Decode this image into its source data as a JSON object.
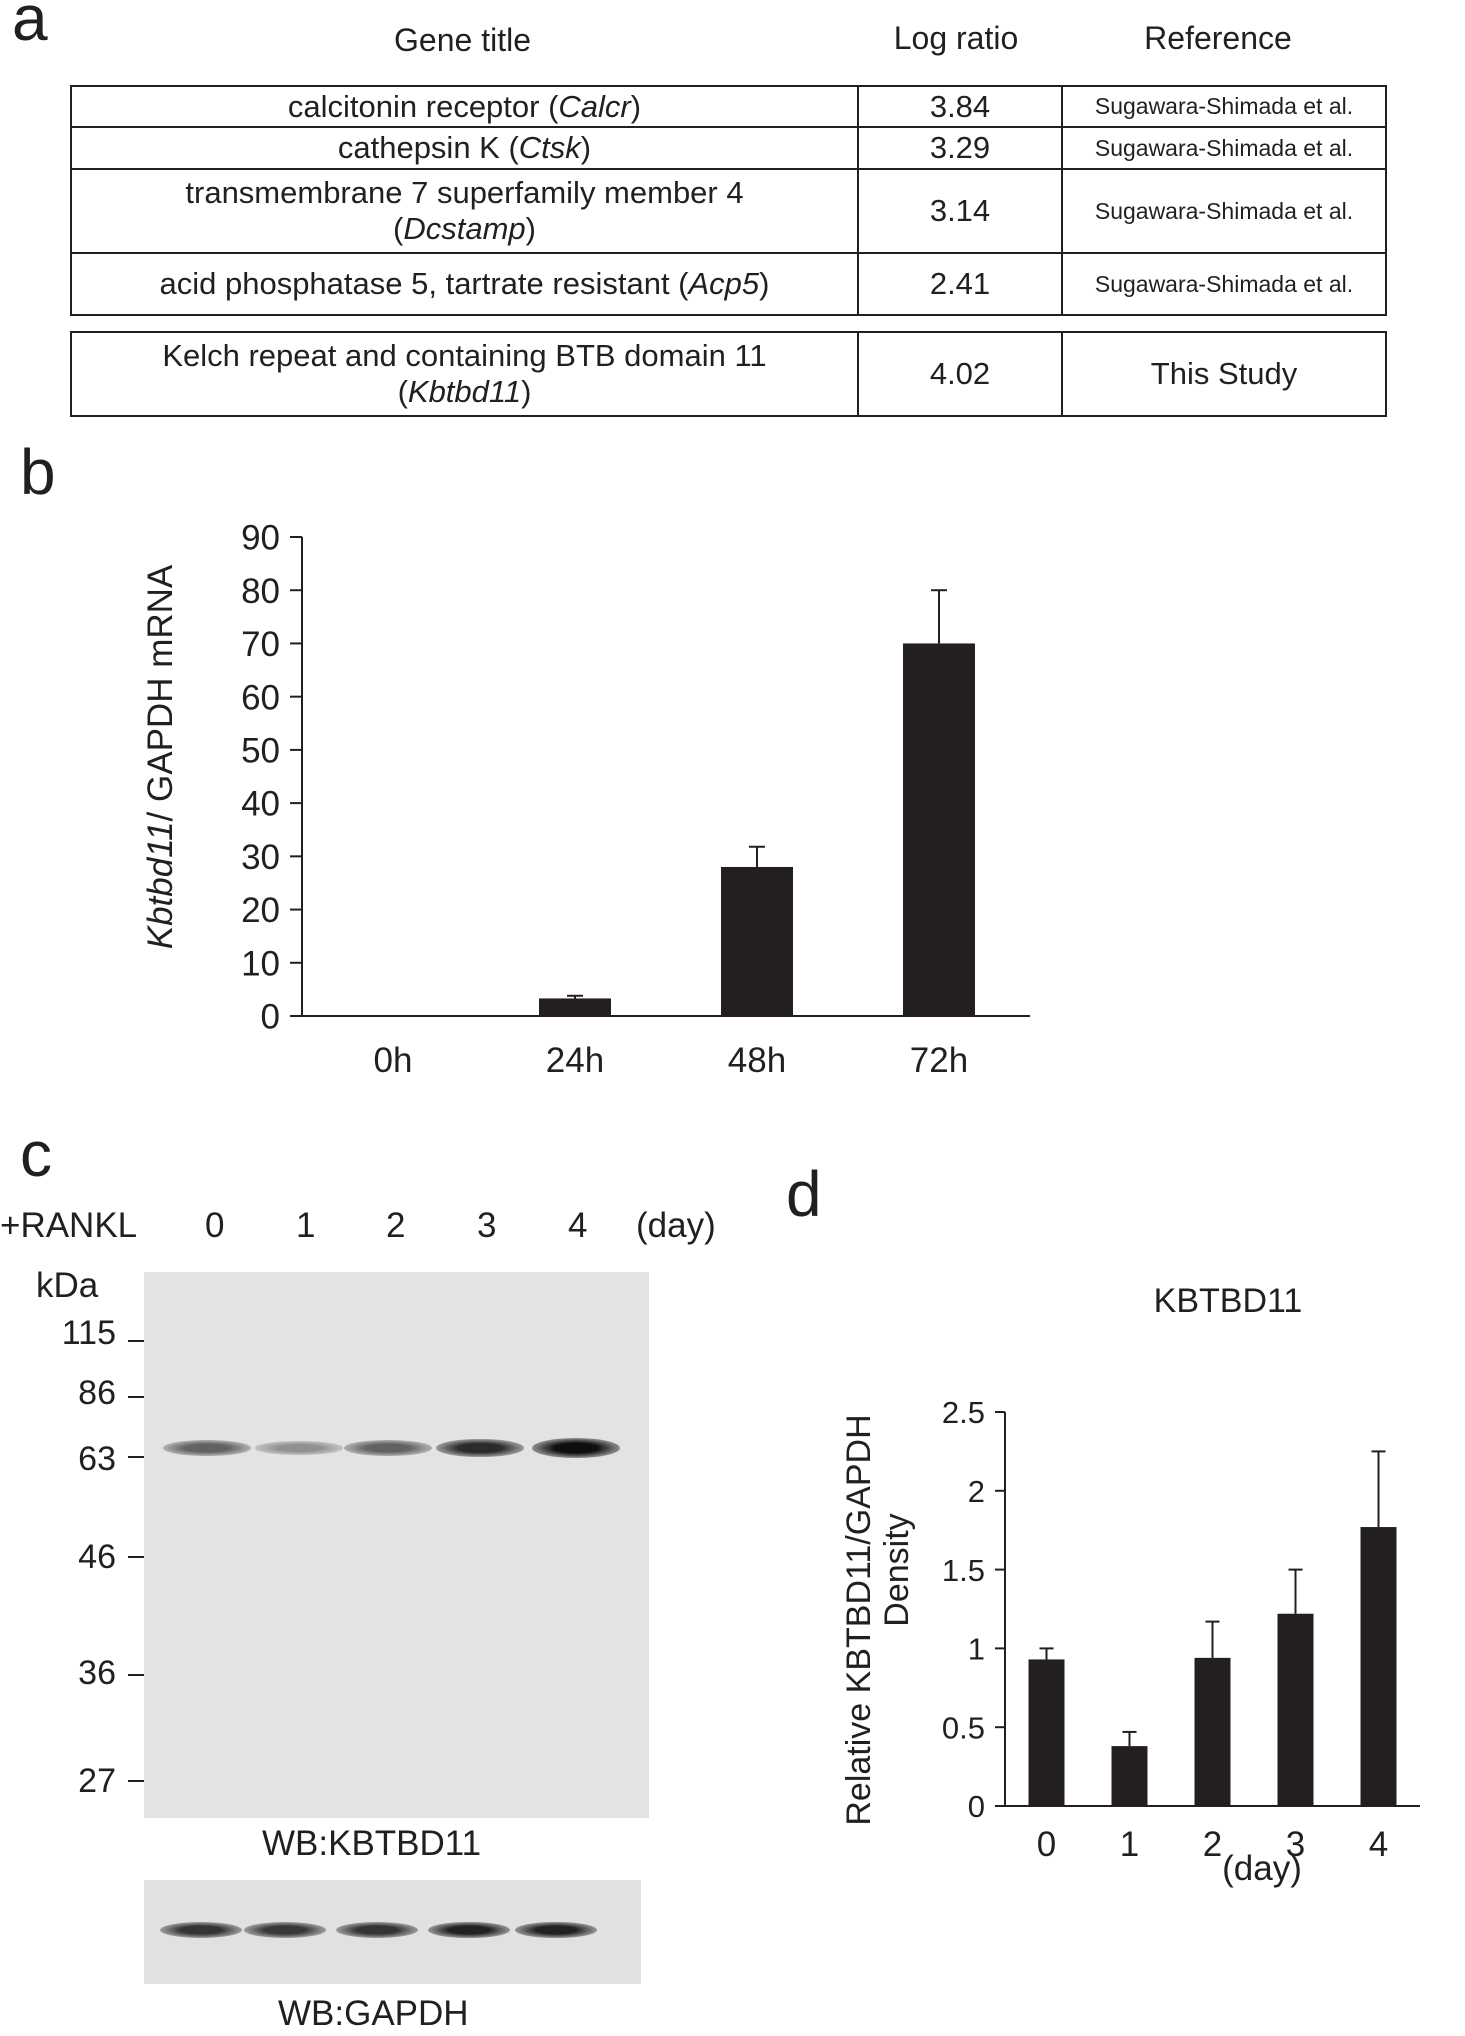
{
  "panels": {
    "a": "a",
    "b": "b",
    "c": "c",
    "d": "d"
  },
  "table": {
    "headers": {
      "gene": "Gene title",
      "log": "Log ratio",
      "ref": "Reference"
    },
    "rows": [
      {
        "gene_line1": "calcitonin receptor  (",
        "gene_italic": "Calcr",
        "gene_tail": ")",
        "gene_line2": "",
        "log_ratio": "3.84",
        "reference": "Sugawara-Shimada et al."
      },
      {
        "gene_line1": "cathepsin K (",
        "gene_italic": "Ctsk",
        "gene_tail": ")",
        "gene_line2": "",
        "log_ratio": "3.29",
        "reference": "Sugawara-Shimada et al."
      },
      {
        "gene_line1": "transmembrane 7 superfamily member 4",
        "gene_italic": "Dcstamp",
        "gene_tail": ")",
        "gene_line2": "(",
        "log_ratio": "3.14",
        "reference": "Sugawara-Shimada et al."
      },
      {
        "gene_line1": "acid phosphatase 5, tartrate resistant (",
        "gene_italic": "Acp5",
        "gene_tail": ")",
        "gene_line2": "",
        "log_ratio": "2.41",
        "reference": "Sugawara-Shimada et al."
      }
    ],
    "study_row": {
      "gene_line1": "Kelch repeat and containing BTB domain 11",
      "gene_line2": "(",
      "gene_italic": "Kbtbd11",
      "gene_tail": ")",
      "log_ratio": "4.02",
      "reference": "This Study"
    }
  },
  "chart_data": [
    {
      "type": "bar",
      "panel": "b",
      "title": "",
      "ylabel_italic": "Kbtbd11",
      "ylabel_rest": "/ GAPDH mRNA",
      "xlabel": "",
      "categories": [
        "0h",
        "24h",
        "48h",
        "72h"
      ],
      "values": [
        0.1,
        3.3,
        28,
        70
      ],
      "errors": [
        0,
        0.5,
        3.8,
        10
      ],
      "ylim": [
        0,
        90
      ],
      "yticks": [
        "0",
        "10",
        "20",
        "30",
        "40",
        "50",
        "60",
        "70",
        "80",
        "90"
      ],
      "bar_color": "#231f20",
      "grid": false
    },
    {
      "type": "bar",
      "panel": "d",
      "title": "KBTBD11",
      "ylabel_line1": "Relative KBTBD11/GAPDH",
      "ylabel_line2": "Density",
      "xlabel": "(day)",
      "categories": [
        "0",
        "1",
        "2",
        "3",
        "4"
      ],
      "values": [
        0.93,
        0.38,
        0.94,
        1.22,
        1.77
      ],
      "errors": [
        0.07,
        0.09,
        0.23,
        0.28,
        0.48
      ],
      "ylim": [
        0,
        2.5
      ],
      "yticks": [
        "0",
        "0.5",
        "1",
        "1.5",
        "2",
        "2.5"
      ],
      "bar_color": "#231f20",
      "grid": false
    }
  ],
  "blot": {
    "treatment_label": "+RANKL",
    "lanes": [
      "0",
      "1",
      "2",
      "3",
      "4"
    ],
    "unit": "(day)",
    "mw_unit": "kDa",
    "markers": [
      "115",
      "86",
      "63",
      "46",
      "36",
      "27"
    ],
    "kbtbd11_label": "WB:KBTBD11",
    "gapdh_label": "WB:GAPDH",
    "kbtbd11_intensity": [
      0.55,
      0.3,
      0.55,
      0.85,
      1.0
    ],
    "gapdh_intensity": [
      0.8,
      0.78,
      0.8,
      0.9,
      0.9
    ]
  }
}
